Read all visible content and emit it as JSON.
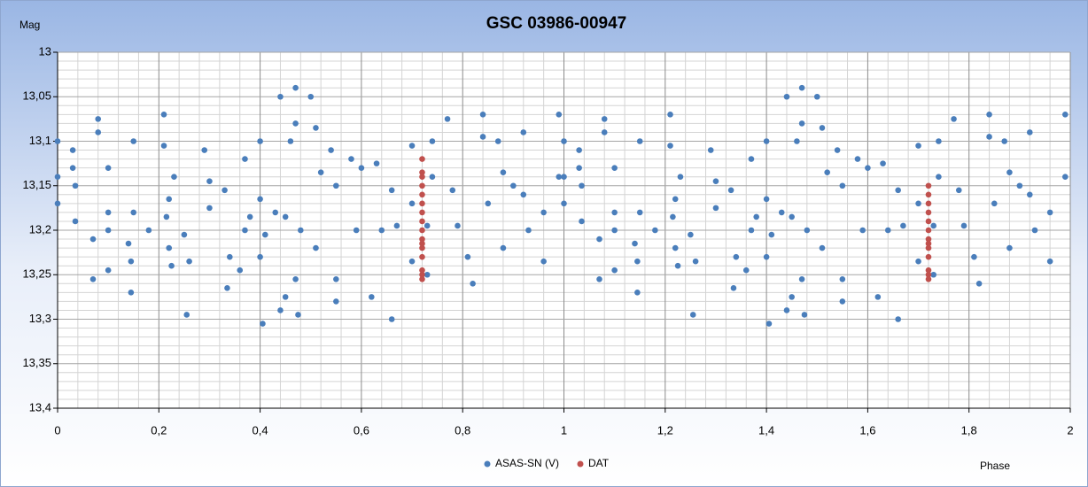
{
  "chart_data": {
    "type": "scatter",
    "title": "GSC 03986-00947",
    "y_axis_label": "Mag",
    "x_axis_label": "Phase",
    "xlim": [
      0,
      2
    ],
    "xticks": [
      0,
      {
        "value": 0.2,
        "label": "0,2"
      },
      {
        "value": 0.4,
        "label": "0,4"
      },
      {
        "value": 0.6,
        "label": "0,6"
      },
      {
        "value": 0.8,
        "label": "0,8"
      },
      1,
      {
        "value": 1.2,
        "label": "1,2"
      },
      {
        "value": 1.4,
        "label": "1,4"
      },
      {
        "value": 1.6,
        "label": "1,6"
      },
      {
        "value": 1.8,
        "label": "1,8"
      },
      2
    ],
    "ylim": [
      13,
      13.4
    ],
    "y_inverted": true,
    "yticks": [
      13,
      {
        "value": 13.05,
        "label": "13,05"
      },
      {
        "value": 13.1,
        "label": "13,1"
      },
      {
        "value": 13.15,
        "label": "13,15"
      },
      {
        "value": 13.2,
        "label": "13,2"
      },
      {
        "value": 13.25,
        "label": "13,25"
      },
      {
        "value": 13.3,
        "label": "13,3"
      },
      {
        "value": 13.35,
        "label": "13,35"
      },
      {
        "value": 13.4,
        "label": "13,4"
      }
    ],
    "grid": true,
    "x_minor_per_major": 5,
    "y_minor_per_major": 5,
    "legend": "bottom",
    "series": [
      {
        "name": "ASAS-SN (V)",
        "color": "#4a7ebb",
        "x": [
          0,
          0,
          0,
          0.03,
          0.03,
          0.035,
          0.035,
          0.07,
          0.07,
          0.08,
          0.08,
          0.1,
          0.1,
          0.1,
          0.1,
          0.14,
          0.145,
          0.145,
          0.15,
          0.15,
          0.18,
          0.21,
          0.21,
          0.215,
          0.22,
          0.22,
          0.225,
          0.23,
          0.25,
          0.255,
          0.26,
          0.29,
          0.3,
          0.3,
          0.33,
          0.335,
          0.34,
          0.36,
          0.37,
          0.37,
          0.38,
          0.4,
          0.4,
          0.4,
          0.405,
          0.41,
          0.43,
          0.44,
          0.44,
          0.45,
          0.45,
          0.46,
          0.47,
          0.47,
          0.47,
          0.475,
          0.48,
          0.5,
          0.51,
          0.51,
          0.52,
          0.54,
          0.55,
          0.55,
          0.55,
          0.58,
          0.59,
          0.6,
          0.62,
          0.63,
          0.64,
          0.66,
          0.66,
          0.67,
          0.7,
          0.7,
          0.7,
          0.73,
          0.73,
          0.74,
          0.74,
          0.77,
          0.78,
          0.79,
          0.81,
          0.82,
          0.84,
          0.84,
          0.85,
          0.87,
          0.88,
          0.88,
          0.9,
          0.92,
          0.92,
          0.93,
          0.96,
          0.96,
          0.99,
          0.99,
          1,
          1,
          1,
          1.03,
          1.03,
          1.035,
          1.035,
          1.07,
          1.07,
          1.08,
          1.08,
          1.1,
          1.1,
          1.1,
          1.1,
          1.14,
          1.145,
          1.145,
          1.15,
          1.15,
          1.18,
          1.21,
          1.21,
          1.215,
          1.22,
          1.22,
          1.225,
          1.23,
          1.25,
          1.255,
          1.26,
          1.29,
          1.3,
          1.3,
          1.33,
          1.335,
          1.34,
          1.36,
          1.37,
          1.37,
          1.38,
          1.4,
          1.4,
          1.4,
          1.405,
          1.41,
          1.43,
          1.44,
          1.44,
          1.45,
          1.45,
          1.46,
          1.47,
          1.47,
          1.47,
          1.475,
          1.48,
          1.5,
          1.51,
          1.51,
          1.52,
          1.54,
          1.55,
          1.55,
          1.55,
          1.58,
          1.59,
          1.6,
          1.62,
          1.63,
          1.64,
          1.66,
          1.66,
          1.67,
          1.7,
          1.7,
          1.7,
          1.73,
          1.73,
          1.74,
          1.74,
          1.77,
          1.78,
          1.79,
          1.81,
          1.82,
          1.84,
          1.84,
          1.85,
          1.87,
          1.88,
          1.88,
          1.9,
          1.92,
          1.92,
          1.93,
          1.96,
          1.96,
          1.99,
          1.99
        ],
        "values": [
          13.1,
          13.14,
          13.17,
          13.11,
          13.13,
          13.15,
          13.19,
          13.21,
          13.255,
          13.075,
          13.09,
          13.13,
          13.18,
          13.2,
          13.245,
          13.215,
          13.235,
          13.27,
          13.18,
          13.1,
          13.2,
          13.07,
          13.105,
          13.185,
          13.22,
          13.165,
          13.24,
          13.14,
          13.205,
          13.295,
          13.235,
          13.11,
          13.145,
          13.175,
          13.155,
          13.265,
          13.23,
          13.245,
          13.12,
          13.2,
          13.185,
          13.1,
          13.165,
          13.23,
          13.305,
          13.205,
          13.18,
          13.05,
          13.29,
          13.275,
          13.185,
          13.1,
          13.04,
          13.08,
          13.255,
          13.295,
          13.2,
          13.05,
          13.085,
          13.22,
          13.135,
          13.11,
          13.15,
          13.255,
          13.28,
          13.12,
          13.2,
          13.13,
          13.275,
          13.125,
          13.2,
          13.155,
          13.3,
          13.195,
          13.105,
          13.17,
          13.235,
          13.195,
          13.25,
          13.1,
          13.14,
          13.075,
          13.155,
          13.195,
          13.23,
          13.26,
          13.07,
          13.095,
          13.17,
          13.1,
          13.135,
          13.22,
          13.15,
          13.09,
          13.16,
          13.2,
          13.18,
          13.235,
          13.07,
          13.14,
          13.1,
          13.14,
          13.17,
          13.11,
          13.13,
          13.15,
          13.19,
          13.21,
          13.255,
          13.075,
          13.09,
          13.13,
          13.18,
          13.2,
          13.245,
          13.215,
          13.235,
          13.27,
          13.18,
          13.1,
          13.2,
          13.07,
          13.105,
          13.185,
          13.22,
          13.165,
          13.24,
          13.14,
          13.205,
          13.295,
          13.235,
          13.11,
          13.145,
          13.175,
          13.155,
          13.265,
          13.23,
          13.245,
          13.12,
          13.2,
          13.185,
          13.1,
          13.165,
          13.23,
          13.305,
          13.205,
          13.18,
          13.05,
          13.29,
          13.275,
          13.185,
          13.1,
          13.04,
          13.08,
          13.255,
          13.295,
          13.2,
          13.05,
          13.085,
          13.22,
          13.135,
          13.11,
          13.15,
          13.255,
          13.28,
          13.12,
          13.2,
          13.13,
          13.275,
          13.125,
          13.2,
          13.155,
          13.3,
          13.195,
          13.105,
          13.17,
          13.235,
          13.195,
          13.25,
          13.1,
          13.14,
          13.075,
          13.155,
          13.195,
          13.23,
          13.26,
          13.07,
          13.095,
          13.17,
          13.1,
          13.135,
          13.22,
          13.15,
          13.09,
          13.16,
          13.2,
          13.18,
          13.235,
          13.07,
          13.14
        ]
      },
      {
        "name": "DAT",
        "color": "#c0504d",
        "x": [
          0.72,
          0.72,
          0.72,
          0.72,
          0.72,
          0.72,
          0.72,
          0.72,
          0.72,
          0.72,
          0.72,
          0.72,
          0.72,
          0.72,
          0.72,
          0.72,
          1.72,
          1.72,
          1.72,
          1.72,
          1.72,
          1.72,
          1.72,
          1.72,
          1.72,
          1.72,
          1.72,
          1.72,
          1.72
        ],
        "values": [
          13.12,
          13.135,
          13.14,
          13.15,
          13.16,
          13.17,
          13.18,
          13.19,
          13.2,
          13.21,
          13.215,
          13.22,
          13.23,
          13.245,
          13.25,
          13.255,
          13.15,
          13.16,
          13.17,
          13.18,
          13.19,
          13.2,
          13.21,
          13.215,
          13.22,
          13.23,
          13.245,
          13.25,
          13.255
        ]
      }
    ]
  }
}
